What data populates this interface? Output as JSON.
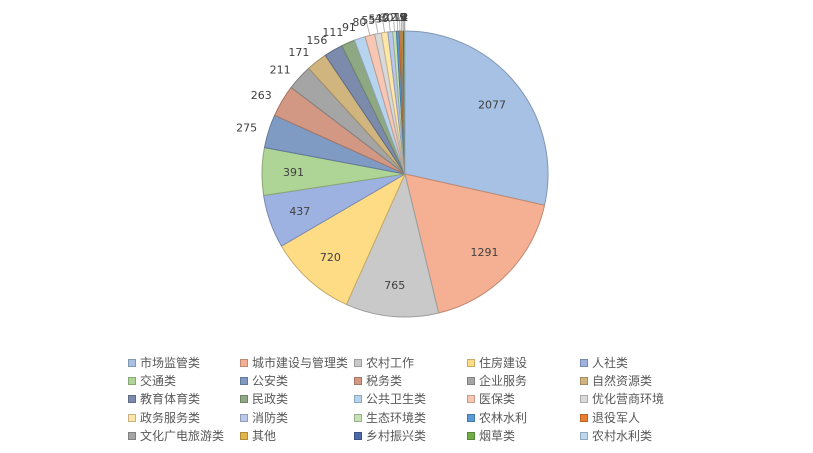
{
  "chart_data": {
    "type": "pie",
    "title": "",
    "legend_position": "bottom",
    "slices": [
      {
        "label": "市场监管类",
        "value": 2077,
        "value_label": "2077",
        "color": "#a6c1e4"
      },
      {
        "label": "城市建设与管理类",
        "value": 1291,
        "value_label": "1291",
        "color": "#f5b093"
      },
      {
        "label": "农村工作",
        "value": 765,
        "value_label": "765",
        "color": "#c9c9c9"
      },
      {
        "label": "住房建设",
        "value": 720,
        "value_label": "720",
        "color": "#fedb85"
      },
      {
        "label": "人社类",
        "value": 437,
        "value_label": "437",
        "color": "#9eb2e1"
      },
      {
        "label": "交通类",
        "value": 391,
        "value_label": "391",
        "color": "#afd596"
      },
      {
        "label": "公安类",
        "value": 275,
        "value_label": "275",
        "color": "#7f9bc4"
      },
      {
        "label": "税务类",
        "value": 263,
        "value_label": "263",
        "color": "#d29884"
      },
      {
        "label": "企业服务",
        "value": 211,
        "value_label": "211",
        "color": "#a5a5a5"
      },
      {
        "label": "自然资源类",
        "value": 171,
        "value_label": "171",
        "color": "#d0b57f"
      },
      {
        "label": "教育体育类",
        "value": 156,
        "value_label": "156",
        "color": "#7c8aab"
      },
      {
        "label": "民政类",
        "value": 111,
        "value_label": "111",
        "color": "#8fa884"
      },
      {
        "label": "公共卫生类",
        "value": 91,
        "value_label": "91",
        "color": "#b7d4ee"
      },
      {
        "label": "医保类",
        "value": 80,
        "value_label": "80",
        "color": "#f7c7b3"
      },
      {
        "label": "优化营商环境",
        "value": 55,
        "value_label": "55",
        "color": "#d9d9d9"
      },
      {
        "label": "政务服务类",
        "value": 53,
        "value_label": "53",
        "color": "#fee6aa"
      },
      {
        "label": "消防类",
        "value": 40,
        "value_label": "40",
        "color": "#b8c8ec"
      },
      {
        "label": "生态环境类",
        "value": 30,
        "value_label": "30",
        "color": "#c6e1b4"
      },
      {
        "label": "农林水利",
        "value": 22,
        "value_label": "22",
        "color": "#5b9bd5"
      },
      {
        "label": "退役军人",
        "value": 15,
        "value_label": "15",
        "color": "#ed7d31"
      },
      {
        "label": "文化广电旅游类",
        "value": 12,
        "value_label": "12",
        "color": "#a5a5a5"
      },
      {
        "label": "其他",
        "value": 9,
        "value_label": "9",
        "color": "#e3b54b"
      },
      {
        "label": "乡村振兴类",
        "value": 6,
        "value_label": "6",
        "color": "#4d6aa8"
      },
      {
        "label": "烟草类",
        "value": 4,
        "value_label": "4",
        "color": "#70ad47"
      },
      {
        "label": "农村水利类",
        "value": 2,
        "value_label": "2",
        "color": "#bdd7ee"
      }
    ]
  }
}
